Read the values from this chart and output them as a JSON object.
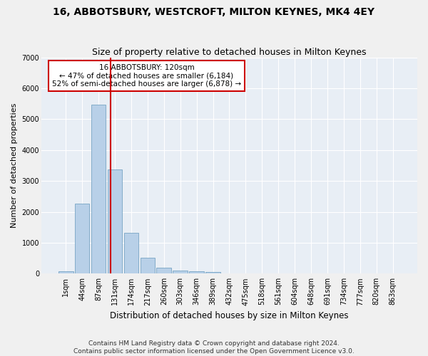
{
  "title": "16, ABBOTSBURY, WESTCROFT, MILTON KEYNES, MK4 4EY",
  "subtitle": "Size of property relative to detached houses in Milton Keynes",
  "xlabel": "Distribution of detached houses by size in Milton Keynes",
  "ylabel": "Number of detached properties",
  "footer_line1": "Contains HM Land Registry data © Crown copyright and database right 2024.",
  "footer_line2": "Contains public sector information licensed under the Open Government Licence v3.0.",
  "bar_labels": [
    "1sqm",
    "44sqm",
    "87sqm",
    "131sqm",
    "174sqm",
    "217sqm",
    "260sqm",
    "303sqm",
    "346sqm",
    "389sqm",
    "432sqm",
    "475sqm",
    "518sqm",
    "561sqm",
    "604sqm",
    "648sqm",
    "691sqm",
    "734sqm",
    "777sqm",
    "820sqm",
    "863sqm"
  ],
  "bar_values": [
    80,
    2270,
    5480,
    3380,
    1310,
    510,
    190,
    100,
    70,
    60,
    0,
    0,
    0,
    0,
    0,
    0,
    0,
    0,
    0,
    0,
    0
  ],
  "bar_color": "#b8d0e8",
  "bar_edgecolor": "#6699bb",
  "annotation_box_text": "16 ABBOTSBURY: 120sqm\n← 47% of detached houses are smaller (6,184)\n52% of semi-detached houses are larger (6,878) →",
  "vline_color": "#cc0000",
  "ylim": [
    0,
    7000
  ],
  "yticks": [
    0,
    1000,
    2000,
    3000,
    4000,
    5000,
    6000,
    7000
  ],
  "bg_color": "#e8eef5",
  "fig_color": "#f0f0f0",
  "grid_color": "#ffffff",
  "title_fontsize": 10,
  "subtitle_fontsize": 9,
  "annotation_fontsize": 7.5,
  "axis_label_fontsize": 8,
  "tick_fontsize": 7,
  "footer_fontsize": 6.5
}
